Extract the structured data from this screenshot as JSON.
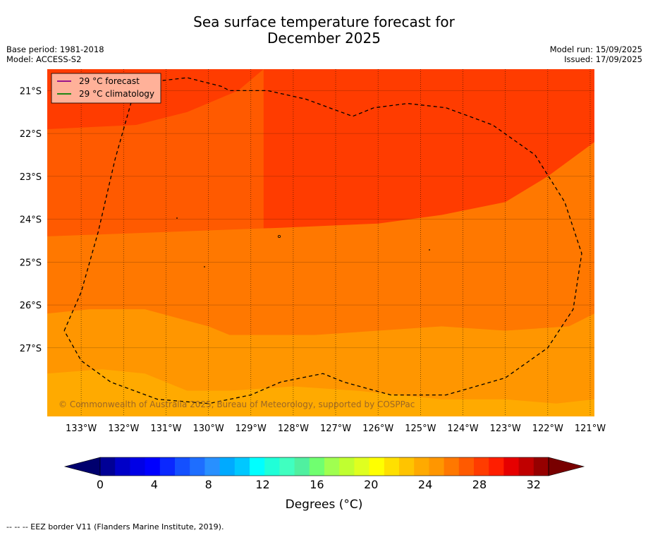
{
  "title_line1": "Sea surface temperature forecast for",
  "title_line2": "December 2025",
  "base_period": "Base period: 1981-2018",
  "model": "Model: ACCESS-S2",
  "model_run": "Model run: 15/09/2025",
  "issued": "Issued: 17/09/2025",
  "copyright": "© Commonwealth of Australia 2025, Bureau of Meteorology, supported by COSPPac",
  "footer": "--  --  -- EEZ border V11 (Flanders Marine Institute, 2019).",
  "legend": {
    "forecast": "29 °C  forecast",
    "climatology": "29 °C  climatology",
    "forecast_color": "#8b008b",
    "climatology_color": "#008000"
  },
  "colorbar": {
    "label": "Degrees (°C)",
    "ticks": [
      "0",
      "4",
      "8",
      "12",
      "16",
      "20",
      "24",
      "28",
      "32"
    ],
    "colors": [
      "#000096",
      "#0000c8",
      "#0000e6",
      "#0000ff",
      "#0a28ff",
      "#1450ff",
      "#1e6eff",
      "#2890ff",
      "#00aaff",
      "#00c8ff",
      "#00ffff",
      "#20ffd8",
      "#40ffc0",
      "#50f0a0",
      "#70ff70",
      "#a0ff50",
      "#c0ff30",
      "#dfff20",
      "#ffff00",
      "#ffe000",
      "#ffc400",
      "#ffaa00",
      "#ff9600",
      "#ff7800",
      "#ff5a00",
      "#ff3c00",
      "#ff1e00",
      "#e60000",
      "#c00000",
      "#960000"
    ],
    "under_color": "#00006e",
    "over_color": "#780000"
  },
  "chart_data": {
    "type": "contour-map",
    "x_ticks": [
      "133°W",
      "132°W",
      "131°W",
      "130°W",
      "129°W",
      "128°W",
      "127°W",
      "126°W",
      "125°W",
      "124°W",
      "123°W",
      "122°W",
      "121°W"
    ],
    "y_ticks": [
      "21°S",
      "22°S",
      "23°S",
      "24°S",
      "25°S",
      "26°S",
      "27°S"
    ],
    "xlim": [
      -133.8,
      -120.9
    ],
    "ylim": [
      -28.6,
      -20.5
    ],
    "contour_bands": [
      {
        "range": "29-30 °C",
        "color": "#ff3c00"
      },
      {
        "range": "28-29 °C",
        "color": "#ff5a00"
      },
      {
        "range": "27-28 °C",
        "color": "#ff7800"
      },
      {
        "range": "26-27 °C",
        "color": "#ff9600"
      },
      {
        "range": "25-26 °C",
        "color": "#ffaa00"
      }
    ],
    "band_boundaries": [
      {
        "between": "29-30/28-29",
        "points": [
          [
            -133.8,
            -21.9
          ],
          [
            -131.7,
            -21.8
          ],
          [
            -130.5,
            -21.5
          ],
          [
            -129.3,
            -21.0
          ],
          [
            -128.7,
            -20.5
          ]
        ]
      },
      {
        "between": "28-29/27-28",
        "points": [
          [
            -133.8,
            -24.4
          ],
          [
            -128.3,
            -24.2
          ],
          [
            -126.0,
            -24.1
          ],
          [
            -124.5,
            -23.9
          ],
          [
            -123.0,
            -23.6
          ],
          [
            -122.0,
            -23.0
          ],
          [
            -120.9,
            -22.2
          ]
        ]
      },
      {
        "between": "27-28/26-27",
        "points": [
          [
            -133.8,
            -26.2
          ],
          [
            -132.8,
            -26.1
          ],
          [
            -131.5,
            -26.1
          ],
          [
            -130.0,
            -26.5
          ],
          [
            -129.5,
            -26.7
          ],
          [
            -127.5,
            -26.7
          ],
          [
            -126.0,
            -26.6
          ],
          [
            -124.5,
            -26.5
          ],
          [
            -123.0,
            -26.6
          ],
          [
            -121.5,
            -26.5
          ],
          [
            -120.9,
            -26.2
          ]
        ]
      },
      {
        "between": "26-27/25-26",
        "points": [
          [
            -133.8,
            -27.6
          ],
          [
            -132.5,
            -27.5
          ],
          [
            -131.5,
            -27.6
          ],
          [
            -130.5,
            -28.0
          ],
          [
            -129.5,
            -28.0
          ],
          [
            -128.0,
            -27.9
          ],
          [
            -126.5,
            -28.0
          ],
          [
            -125.5,
            -28.1
          ],
          [
            -124.5,
            -28.2
          ],
          [
            -123.0,
            -28.2
          ],
          [
            -121.8,
            -28.3
          ],
          [
            -120.9,
            -28.2
          ]
        ]
      }
    ],
    "eez_border": [
      [
        -133.4,
        -26.6
      ],
      [
        -133.0,
        -25.7
      ],
      [
        -132.6,
        -24.3
      ],
      [
        -132.2,
        -22.6
      ],
      [
        -131.8,
        -21.2
      ],
      [
        -131.4,
        -20.8
      ],
      [
        -130.5,
        -20.7
      ],
      [
        -129.7,
        -20.9
      ],
      [
        -129.5,
        -21.0
      ],
      [
        -128.6,
        -21.0
      ],
      [
        -127.7,
        -21.2
      ],
      [
        -126.6,
        -21.6
      ],
      [
        -126.1,
        -21.4
      ],
      [
        -125.3,
        -21.3
      ],
      [
        -124.4,
        -21.4
      ],
      [
        -123.3,
        -21.8
      ],
      [
        -122.3,
        -22.5
      ],
      [
        -121.6,
        -23.6
      ],
      [
        -121.2,
        -24.8
      ],
      [
        -121.4,
        -26.1
      ],
      [
        -122.0,
        -27.0
      ],
      [
        -123.0,
        -27.7
      ],
      [
        -124.4,
        -28.1
      ],
      [
        -125.7,
        -28.1
      ],
      [
        -126.8,
        -27.8
      ],
      [
        -127.3,
        -27.6
      ],
      [
        -127.8,
        -27.7
      ],
      [
        -128.3,
        -27.8
      ],
      [
        -129.0,
        -28.1
      ],
      [
        -130.0,
        -28.3
      ],
      [
        -131.2,
        -28.2
      ],
      [
        -132.3,
        -27.8
      ],
      [
        -133.0,
        -27.3
      ],
      [
        -133.4,
        -26.6
      ]
    ]
  }
}
